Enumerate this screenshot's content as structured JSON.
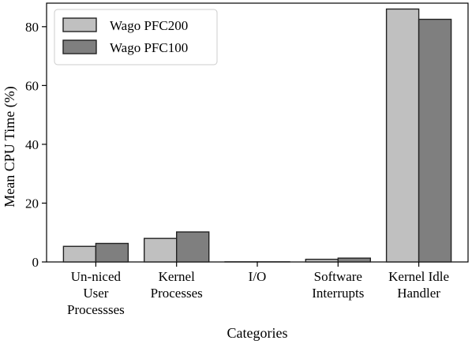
{
  "chart_data": {
    "type": "bar",
    "categories": [
      [
        "Un-niced",
        "User",
        "Processses"
      ],
      [
        "Kernel",
        "Processes"
      ],
      [
        "I/O"
      ],
      [
        "Software",
        "Interrupts"
      ],
      [
        "Kernel Idle",
        "Handler"
      ]
    ],
    "series": [
      {
        "name": "Wago PFC200",
        "color": "#c0c0c0",
        "values": [
          5.3,
          8.0,
          0.05,
          0.9,
          86.0
        ]
      },
      {
        "name": "Wago PFC100",
        "color": "#7f7f7f",
        "values": [
          6.3,
          10.2,
          0.05,
          1.3,
          82.5
        ]
      }
    ],
    "title": "",
    "xlabel": "Categories",
    "ylabel": "Mean CPU Time (%)",
    "ylim": [
      0,
      88
    ],
    "yticks": [
      0,
      20,
      40,
      60,
      80
    ],
    "grid": false,
    "legend_position": "top-left"
  }
}
